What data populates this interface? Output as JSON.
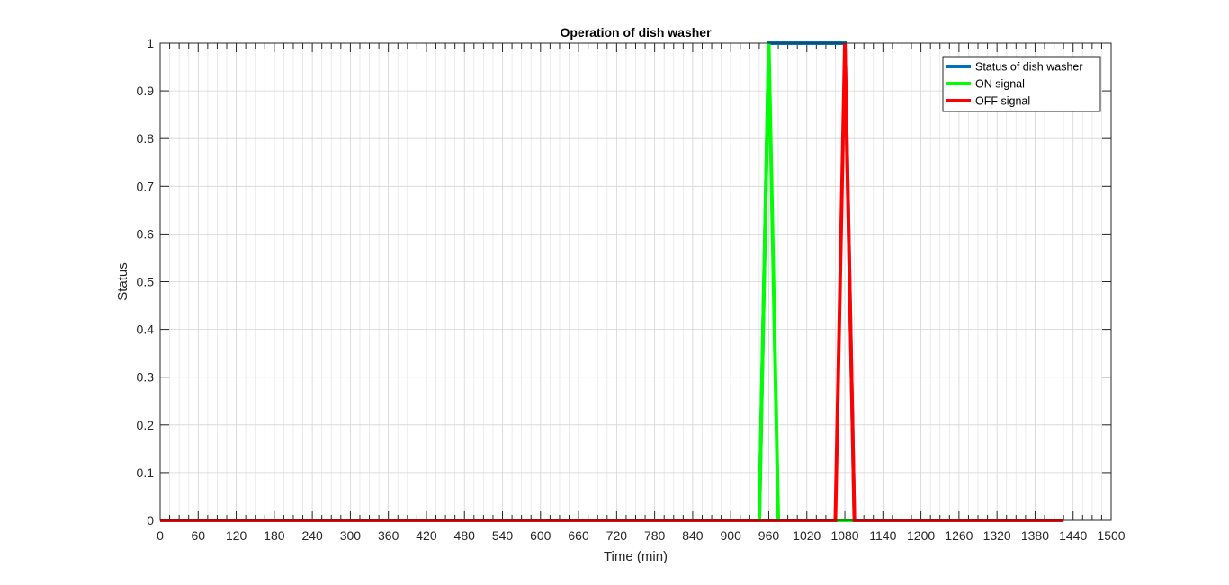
{
  "chart_data": {
    "type": "line",
    "title": "Operation of dish washer",
    "xlabel": "Time (min)",
    "ylabel": "Status",
    "xlim": [
      0,
      1500
    ],
    "ylim": [
      0,
      1
    ],
    "xticks": [
      0,
      60,
      120,
      180,
      240,
      300,
      360,
      420,
      480,
      540,
      600,
      660,
      720,
      780,
      840,
      900,
      960,
      1020,
      1080,
      1140,
      1200,
      1260,
      1320,
      1380,
      1440,
      1500
    ],
    "yticks": [
      0,
      0.1,
      0.2,
      0.3,
      0.4,
      0.5,
      0.6,
      0.7,
      0.8,
      0.9,
      1
    ],
    "grid": true,
    "minor_grid_step": 15,
    "legend_position": "top-right",
    "series": [
      {
        "name": "Status of dish washer",
        "color": "#0072BD",
        "x": [
          0,
          945,
          960,
          1080,
          1095,
          1425
        ],
        "y": [
          0,
          0,
          1,
          1,
          0,
          0
        ]
      },
      {
        "name": "ON signal",
        "color": "#00FF00",
        "x": [
          0,
          945,
          960,
          975,
          1425
        ],
        "y": [
          0,
          0,
          1,
          0,
          0
        ]
      },
      {
        "name": "OFF signal",
        "color": "#FF0000",
        "x": [
          0,
          1065,
          1080,
          1095,
          1425
        ],
        "y": [
          0,
          0,
          1,
          0,
          0
        ]
      }
    ]
  }
}
